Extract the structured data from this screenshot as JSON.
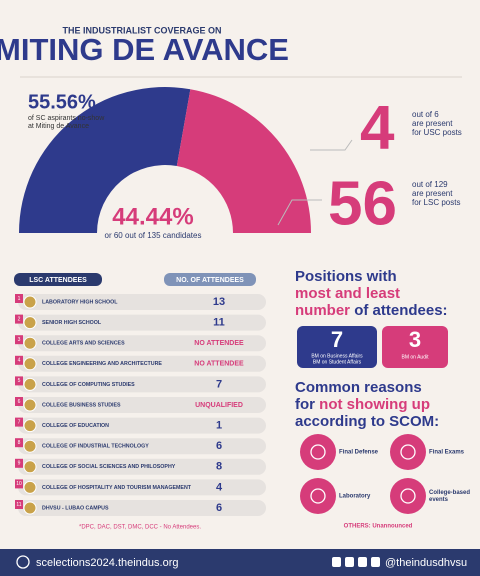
{
  "header": {
    "kicker": "THE INDUSTRIALIST COVERAGE ON",
    "title": "MITING DE AVANCE"
  },
  "gauge": {
    "segments": [
      {
        "value": 55.56,
        "label": "55.56%",
        "color": "#2e3a8c",
        "caption": [
          "of SC aspirants no-show",
          "at Miting de Avance"
        ]
      },
      {
        "value": 44.44,
        "label": "44.44%",
        "color": "#d63c7a",
        "caption": [
          "or 60 out of 135 candidates"
        ]
      }
    ]
  },
  "usc": {
    "count": "4",
    "lines": [
      "out of 6",
      "are present",
      "for USC posts"
    ]
  },
  "lsc": {
    "count": "56",
    "lines": [
      "out of 129",
      "are present",
      "for LSC posts"
    ]
  },
  "table": {
    "headers": [
      "LSC ATTENDEES",
      "NO. OF ATTENDEES"
    ],
    "rows": [
      [
        "1",
        "LABORATORY HIGH SCHOOL",
        "13"
      ],
      [
        "2",
        "SENIOR HIGH SCHOOL",
        "11"
      ],
      [
        "3",
        "COLLEGE ARTS AND SCIENCES",
        "NO ATTENDEE"
      ],
      [
        "4",
        "COLLEGE ENGINEERING AND ARCHITECTURE",
        "NO ATTENDEE"
      ],
      [
        "5",
        "COLLEGE OF COMPUTING STUDIES",
        "7"
      ],
      [
        "6",
        "COLLEGE BUSINESS STUDIES",
        "UNQUALIFIED"
      ],
      [
        "7",
        "COLLEGE OF EDUCATION",
        "1"
      ],
      [
        "8",
        "COLLEGE OF INDUSTRIAL TECHNOLOGY",
        "6"
      ],
      [
        "9",
        "COLLEGE OF SOCIAL SCIENCES AND PHILOSOPHY",
        "8"
      ],
      [
        "10",
        "COLLEGE OF HOSPITALITY AND TOURISM MANAGEMENT",
        "4"
      ],
      [
        "11",
        "DHVSU - LUBAO CAMPUS",
        "6"
      ]
    ],
    "footnote": "*DPC, DAC, DST, DMC, DCC - No Attendees."
  },
  "positions": {
    "title": [
      "Positions with",
      "most and least",
      "number",
      "of attendees:"
    ],
    "cards": [
      {
        "count": "7",
        "lines": [
          "BM on Business Affairs",
          "BM on Student Affairs"
        ]
      },
      {
        "count": "3",
        "lines": [
          "BM on Audit"
        ]
      }
    ]
  },
  "reasons": {
    "title": [
      "Common reasons",
      "for",
      "not showing up",
      "according to SCOM:"
    ],
    "items": [
      [
        "Final Defense"
      ],
      [
        "Final Exams"
      ],
      [
        "Laboratory"
      ],
      [
        "College-based",
        "events"
      ]
    ],
    "others": "OTHERS: Unannounced"
  },
  "footer": {
    "website": "scelections2024.theindus.org",
    "handle": "@theindusdhvsu"
  }
}
